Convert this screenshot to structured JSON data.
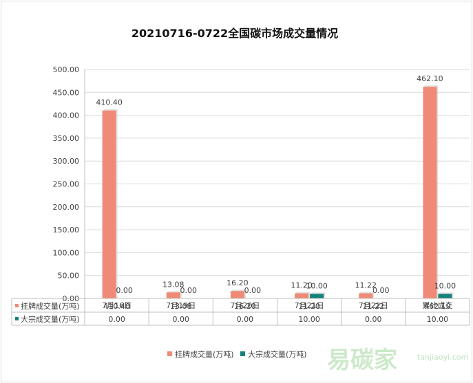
{
  "chart_data": {
    "type": "bar",
    "title": "20210716-0722全国碳市场成交量情况",
    "categories": [
      "7月16日",
      "7月19日",
      "7月20日",
      "7月21日",
      "7月22日",
      "累计成交"
    ],
    "series": [
      {
        "name": "挂牌成交量(万吨)",
        "color": "#f08a77",
        "values": [
          410.4,
          13.08,
          16.2,
          11.2,
          11.22,
          462.1
        ],
        "labels": [
          "410.40",
          "13.08",
          "16.20",
          "11.20",
          "11.22",
          "462.10"
        ]
      },
      {
        "name": "大宗成交量(万吨)",
        "color": "#15827a",
        "values": [
          0.0,
          0.0,
          0.0,
          10.0,
          0.0,
          10.0
        ],
        "labels": [
          "0.00",
          "0.00",
          "0.00",
          "10.00",
          "0.00",
          "10.00"
        ]
      }
    ],
    "ylim": [
      0,
      500
    ],
    "yticks": [
      "0.00",
      "50.00",
      "100.00",
      "150.00",
      "200.00",
      "250.00",
      "300.00",
      "350.00",
      "400.00",
      "450.00",
      "500.00"
    ],
    "grid": true,
    "legend_position": "bottom",
    "data_table": true
  },
  "watermark": {
    "text_cn": "易碳家",
    "text_en": "tanjiaoyi.com"
  }
}
